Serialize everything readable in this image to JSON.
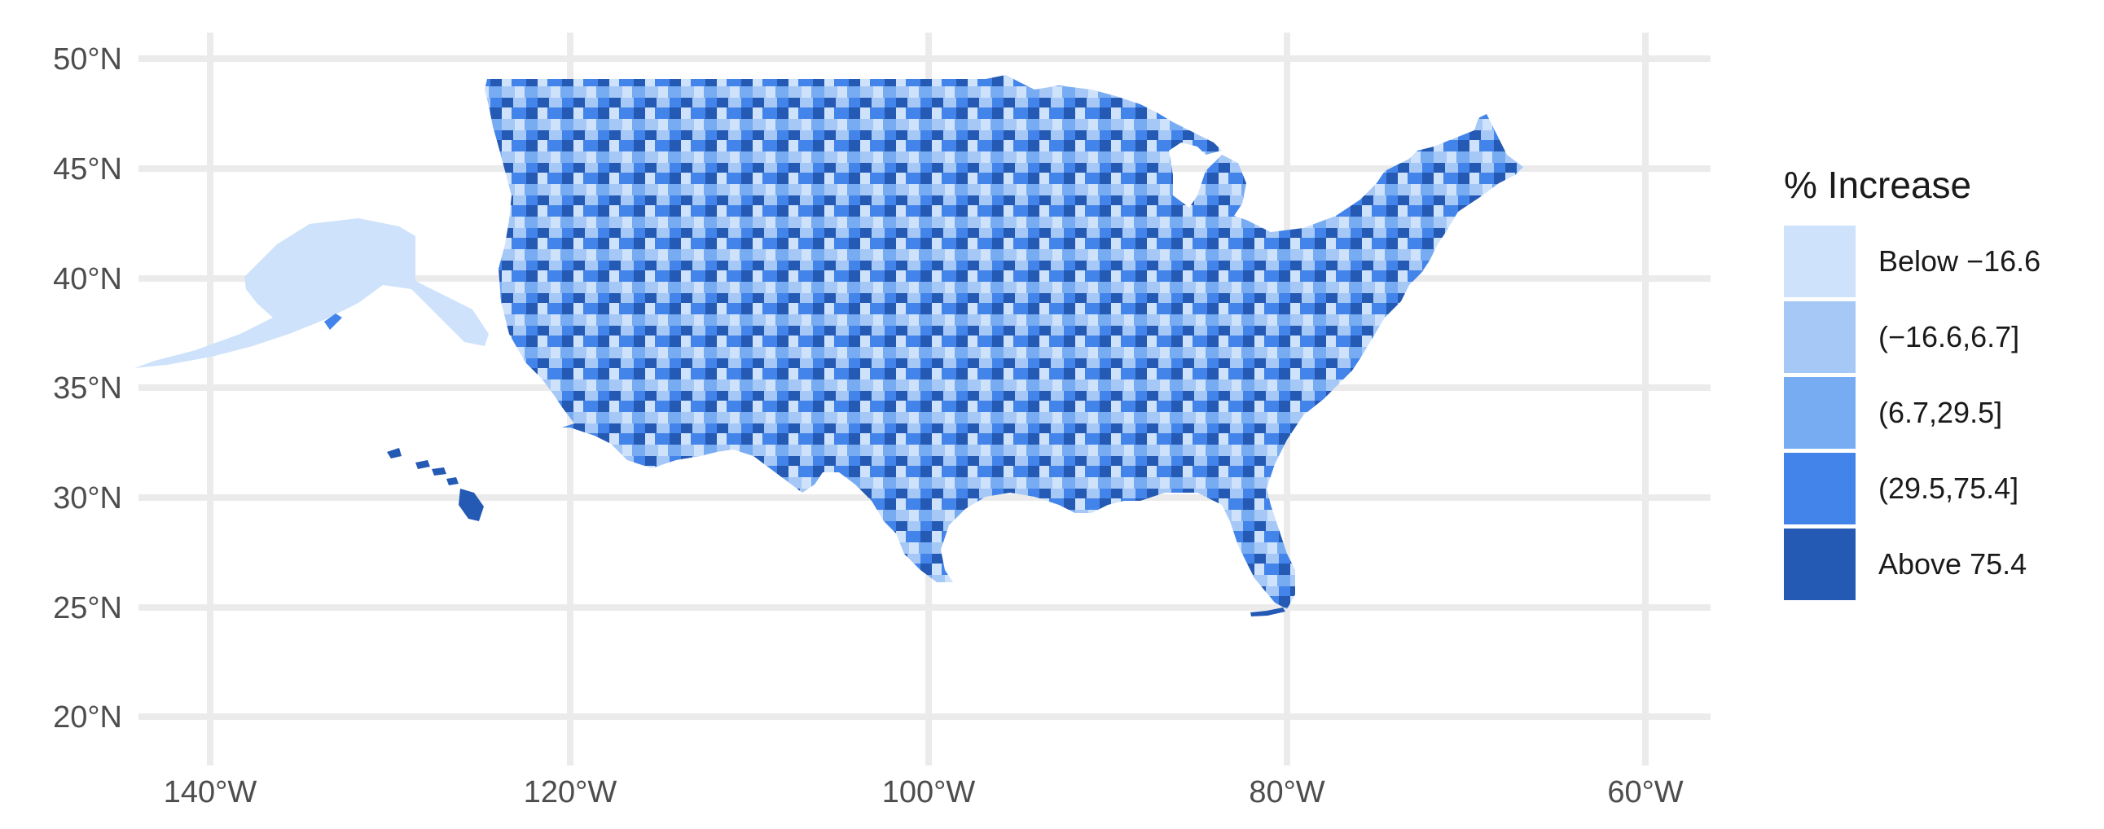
{
  "map": {
    "legend": {
      "title": "% Increase",
      "items": [
        {
          "label": "Below −16.6",
          "color": "#cfe2fb"
        },
        {
          "label": "(−16.6,6.7]",
          "color": "#a6c8f6"
        },
        {
          "label": "(6.7,29.5]",
          "color": "#77acf2"
        },
        {
          "label": "(29.5,75.4]",
          "color": "#4384ea"
        },
        {
          "label": "Above 75.4",
          "color": "#2459b4"
        }
      ]
    },
    "axes": {
      "x_ticks": [
        "140°W",
        "120°W",
        "100°W",
        "80°W",
        "60°W"
      ],
      "y_ticks": [
        "50°N",
        "45°N",
        "40°N",
        "35°N",
        "30°N",
        "25°N",
        "20°N"
      ],
      "x_range_deg": [
        -142,
        -56
      ],
      "y_range_deg": [
        19,
        51
      ],
      "grid": true
    },
    "colors": {
      "background": "#ffffff",
      "gridline": "#ebebeb",
      "tick_text": "#4d4d4d"
    }
  }
}
